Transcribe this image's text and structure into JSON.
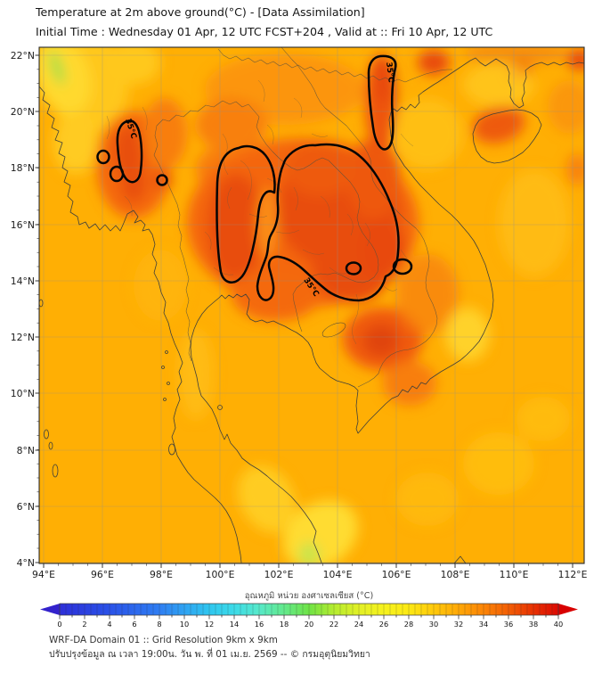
{
  "header": {
    "title_line1": "Temperature at 2m above ground(°C) - [Data Assimilation]",
    "title_line2": "Initial Time : Wednesday 01 Apr, 12 UTC FCST+204 , Valid at :: Fri 10 Apr, 12 UTC"
  },
  "map": {
    "x_tick_labels": [
      "94°E",
      "96°E",
      "98°E",
      "100°E",
      "102°E",
      "104°E",
      "106°E",
      "108°E",
      "110°E",
      "112°E"
    ],
    "y_tick_labels": [
      "22°N",
      "20°N",
      "18°N",
      "16°N",
      "14°N",
      "12°N",
      "10°N",
      "8°N",
      "6°N",
      "4°N"
    ],
    "contour_labels": {
      "myanmar": "35°C",
      "vietnam": "35°C",
      "central": "35°C"
    },
    "contour_level_c": 35
  },
  "colorbar": {
    "title_th": "อุณหภูมิ หน่วย องศาเซลเซียส (°C)",
    "tick_labels": [
      "0",
      "2",
      "4",
      "6",
      "8",
      "10",
      "12",
      "14",
      "16",
      "18",
      "20",
      "22",
      "24",
      "26",
      "28",
      "30",
      "32",
      "34",
      "36",
      "38",
      "40"
    ],
    "min": 0,
    "max": 40,
    "units": "°C",
    "colors": {
      "low": "#2d2fd8",
      "mid": "#6fe346",
      "high": "#dc0a03"
    }
  },
  "footer": {
    "line1": "WRF-DA Domain 01 :: Grid Resolution 9km x 9km",
    "line2": "ปรับปรุงข้อมูล ณ เวลา 19:00น. วัน พ. ที่ 01 เม.ย. 2569 -- © กรมอุตุนิยมวิทยา"
  },
  "chart_data": {
    "type": "heatmap",
    "title": "Temperature at 2m above ground (°C), WRF-DA forecast",
    "lon_range_deg_e": [
      94,
      112.4
    ],
    "lat_range_deg_n": [
      4,
      22.3
    ],
    "colorbar_range_c": [
      0,
      40
    ],
    "colorbar_tick_step_c": 2,
    "contour_level_c": 35,
    "field_summary": [
      {
        "region": "Sea areas (Andaman, Gulf of Thailand, South China Sea)",
        "approx_temp_c": 30.5
      },
      {
        "region": "Northern & Northeastern Thailand / Laos (inside 35°C contour)",
        "approx_temp_c": 36
      },
      {
        "region": "Central Myanmar (inside 35°C contour)",
        "approx_temp_c": 35.5
      },
      {
        "region": "Northern Vietnam valley (inside 35°C contour)",
        "approx_temp_c": 35.5
      },
      {
        "region": "Cambodia / southern Vietnam hot core",
        "approx_temp_c": 36
      },
      {
        "region": "Central Vietnam highlands (yellow spot)",
        "approx_temp_c": 29
      },
      {
        "region": "Southern Malay peninsula (yellow-green)",
        "approx_temp_c": 27
      }
    ]
  }
}
